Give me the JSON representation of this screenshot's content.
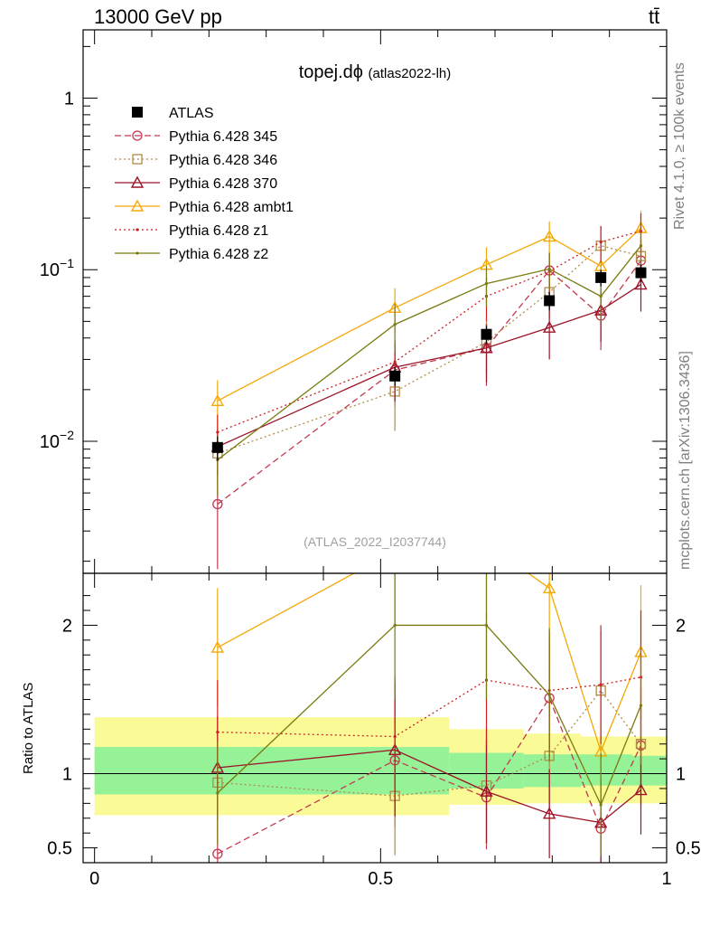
{
  "header": {
    "energy": "13000 GeV pp",
    "process": "tt̄"
  },
  "side": {
    "rivet": "Rivet 4.1.0, ≥ 100k events",
    "mcplots": "mcplots.cern.ch [arXiv:1306.3436]"
  },
  "ratio_ylabel": "Ratio to ATLAS",
  "colors": {
    "atlas": "#000000",
    "p345": "#c0394f",
    "p346": "#b08c4a",
    "p370": "#9b1428",
    "ambt1": "#f2a90a",
    "z1": "#cc2222",
    "z2": "#7a7a10",
    "band_inner": "#96f296",
    "band_outer": "#fafa96"
  },
  "chart_data": {
    "type": "line",
    "title": "topej.dϕ",
    "subtitle": "(atlas2022-lh)",
    "analysis_label": "(ATLAS_2022_I2037744)",
    "x": [
      0.215,
      0.525,
      0.685,
      0.795,
      0.885,
      0.955
    ],
    "xlim": [
      -0.02,
      1.0
    ],
    "xticks": [
      0,
      0.5,
      1
    ],
    "xtick_labels": [
      "0",
      "0.5",
      "1"
    ],
    "ylim": [
      0.0017,
      2.5
    ],
    "yticks_major": [
      {
        "value": 1,
        "label": "1",
        "sup": ""
      },
      {
        "value": 0.1,
        "label": "10",
        "sup": "−1"
      },
      {
        "value": 0.01,
        "label": "10",
        "sup": "−2"
      }
    ],
    "ratio_ylim": [
      0.4,
      2.35
    ],
    "ratio_ticks": [
      0.5,
      1,
      2
    ],
    "ratio_tick_labels": [
      "0.5",
      "1",
      "2"
    ],
    "bins": [
      {
        "lo": 0.0,
        "hi": 0.62,
        "inner": [
          0.86,
          1.18
        ],
        "outer": [
          0.72,
          1.38
        ]
      },
      {
        "lo": 0.62,
        "hi": 0.75,
        "inner": [
          0.9,
          1.14
        ],
        "outer": [
          0.79,
          1.3
        ]
      },
      {
        "lo": 0.75,
        "hi": 0.85,
        "inner": [
          0.91,
          1.13
        ],
        "outer": [
          0.8,
          1.27
        ]
      },
      {
        "lo": 0.85,
        "hi": 0.94,
        "inner": [
          0.92,
          1.13
        ],
        "outer": [
          0.8,
          1.25
        ]
      },
      {
        "lo": 0.94,
        "hi": 1.0,
        "inner": [
          0.92,
          1.12
        ],
        "outer": [
          0.8,
          1.25
        ]
      }
    ],
    "series": [
      {
        "name": "ATLAS",
        "key": "atlas",
        "marker": "square",
        "dash": "",
        "values": [
          0.0092,
          0.024,
          0.042,
          0.066,
          0.09,
          0.096
        ],
        "err": [
          0.0015,
          0.003,
          0.005,
          0.008,
          0.01,
          0.011
        ],
        "ratio": [
          1,
          1,
          1,
          1,
          1,
          1
        ],
        "ratio_err": [
          0,
          0,
          0,
          0,
          0,
          0
        ]
      },
      {
        "name": "Pythia 6.428 345",
        "key": "p345",
        "marker": "circle",
        "dash": "7,4",
        "values": [
          0.0043,
          0.026,
          0.035,
          0.099,
          0.054,
          0.113
        ],
        "err": [
          0.0025,
          0.01,
          0.014,
          0.025,
          0.02,
          0.035
        ],
        "ratio": [
          0.46,
          1.09,
          0.84,
          1.51,
          0.63,
          1.19
        ],
        "ratio_err": [
          0.3,
          0.45,
          0.35,
          0.4,
          0.35,
          0.4
        ]
      },
      {
        "name": "Pythia 6.428 346",
        "key": "p346",
        "marker": "square-open",
        "dash": "2,3",
        "values": [
          0.0085,
          0.0195,
          0.038,
          0.074,
          0.138,
          0.12
        ],
        "err": [
          0.003,
          0.008,
          0.013,
          0.022,
          0.04,
          0.035
        ],
        "ratio": [
          0.94,
          0.85,
          0.92,
          1.12,
          1.56,
          1.2
        ],
        "ratio_err": [
          0.35,
          0.4,
          0.4,
          0.35,
          0.4,
          0.35
        ]
      },
      {
        "name": "Pythia 6.428 370",
        "key": "p370",
        "marker": "triangle-open",
        "dash": "",
        "values": [
          0.0093,
          0.027,
          0.035,
          0.046,
          0.058,
          0.082
        ],
        "err": [
          0.003,
          0.01,
          0.013,
          0.016,
          0.02,
          0.025
        ],
        "ratio": [
          1.04,
          1.16,
          0.88,
          0.73,
          0.67,
          0.89
        ],
        "ratio_err": [
          0.35,
          0.45,
          0.35,
          0.3,
          0.3,
          0.3
        ]
      },
      {
        "name": "Pythia 6.428 ambt1",
        "key": "ambt1",
        "marker": "triangle-open",
        "dash": "",
        "values": [
          0.0172,
          0.06,
          0.107,
          0.156,
          0.105,
          0.175
        ],
        "err": [
          0.0055,
          0.018,
          0.028,
          0.035,
          0.03,
          0.045
        ],
        "ratio": [
          1.85,
          2.5,
          2.55,
          2.25,
          1.15,
          1.82
        ],
        "ratio_err": [
          0.4,
          0.5,
          0.5,
          0.5,
          0.4,
          0.45
        ]
      },
      {
        "name": "Pythia 6.428 z1",
        "key": "z1",
        "marker": "dot",
        "dash": "2,3",
        "values": [
          0.0113,
          0.029,
          0.07,
          0.098,
          0.145,
          0.168
        ],
        "err": [
          0.003,
          0.01,
          0.02,
          0.025,
          0.035,
          0.045
        ],
        "ratio": [
          1.28,
          1.25,
          1.63,
          1.56,
          1.6,
          1.65
        ],
        "ratio_err": [
          0.35,
          0.4,
          0.45,
          0.4,
          0.4,
          0.45
        ]
      },
      {
        "name": "Pythia 6.428 z2",
        "key": "z2",
        "marker": "dot",
        "dash": "",
        "values": [
          0.0078,
          0.048,
          0.083,
          0.101,
          0.07,
          0.138
        ],
        "err": [
          0.003,
          0.015,
          0.022,
          0.025,
          0.02,
          0.035
        ],
        "ratio": [
          0.87,
          2.0,
          2.0,
          1.53,
          0.79,
          1.46
        ],
        "ratio_err": [
          0.35,
          0.5,
          0.5,
          0.45,
          0.35,
          0.4
        ]
      }
    ]
  }
}
